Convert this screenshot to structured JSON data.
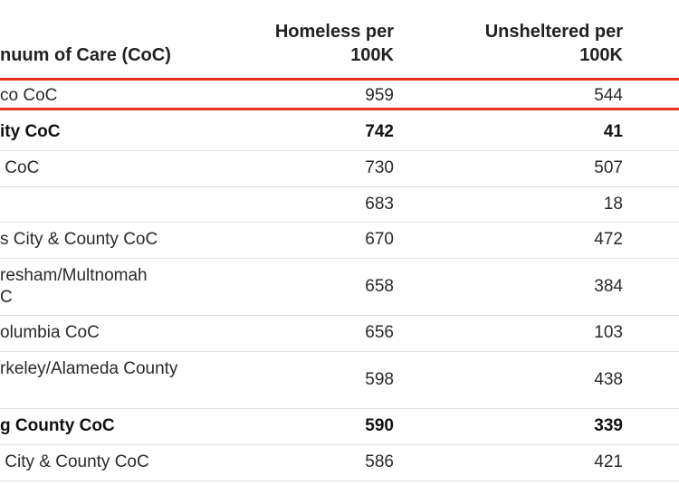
{
  "header": {
    "name": "nuum of Care (CoC)",
    "homeless_line1": "Homeless per",
    "homeless_line2": "100K",
    "unsheltered_line1": "Unsheltered per",
    "unsheltered_line2": "100K"
  },
  "highlight_color": "#e8321f",
  "rows": [
    {
      "name_line1": "co CoC",
      "name_line2": "",
      "homeless": "959",
      "unsheltered": "544",
      "bold": false
    },
    {
      "name_line1": "ity CoC",
      "name_line2": "",
      "homeless": "742",
      "unsheltered": "41",
      "bold": true
    },
    {
      "name_line1": " CoC",
      "name_line2": "",
      "homeless": "730",
      "unsheltered": "507",
      "bold": false
    },
    {
      "name_line1": "",
      "name_line2": "",
      "homeless": "683",
      "unsheltered": "18",
      "bold": false
    },
    {
      "name_line1": "s City & County CoC",
      "name_line2": "",
      "homeless": "670",
      "unsheltered": "472",
      "bold": false
    },
    {
      "name_line1": "resham/Multnomah",
      "name_line2": "C",
      "homeless": "658",
      "unsheltered": "384",
      "bold": false
    },
    {
      "name_line1": "olumbia CoC",
      "name_line2": "",
      "homeless": "656",
      "unsheltered": "103",
      "bold": false
    },
    {
      "name_line1": "rkeley/Alameda County",
      "name_line2": "",
      "homeless": "598",
      "unsheltered": "438",
      "bold": false
    },
    {
      "name_line1": "g County CoC",
      "name_line2": "",
      "homeless": "590",
      "unsheltered": "339",
      "bold": true
    },
    {
      "name_line1": " City & County CoC",
      "name_line2": "",
      "homeless": "586",
      "unsheltered": "421",
      "bold": false
    }
  ]
}
